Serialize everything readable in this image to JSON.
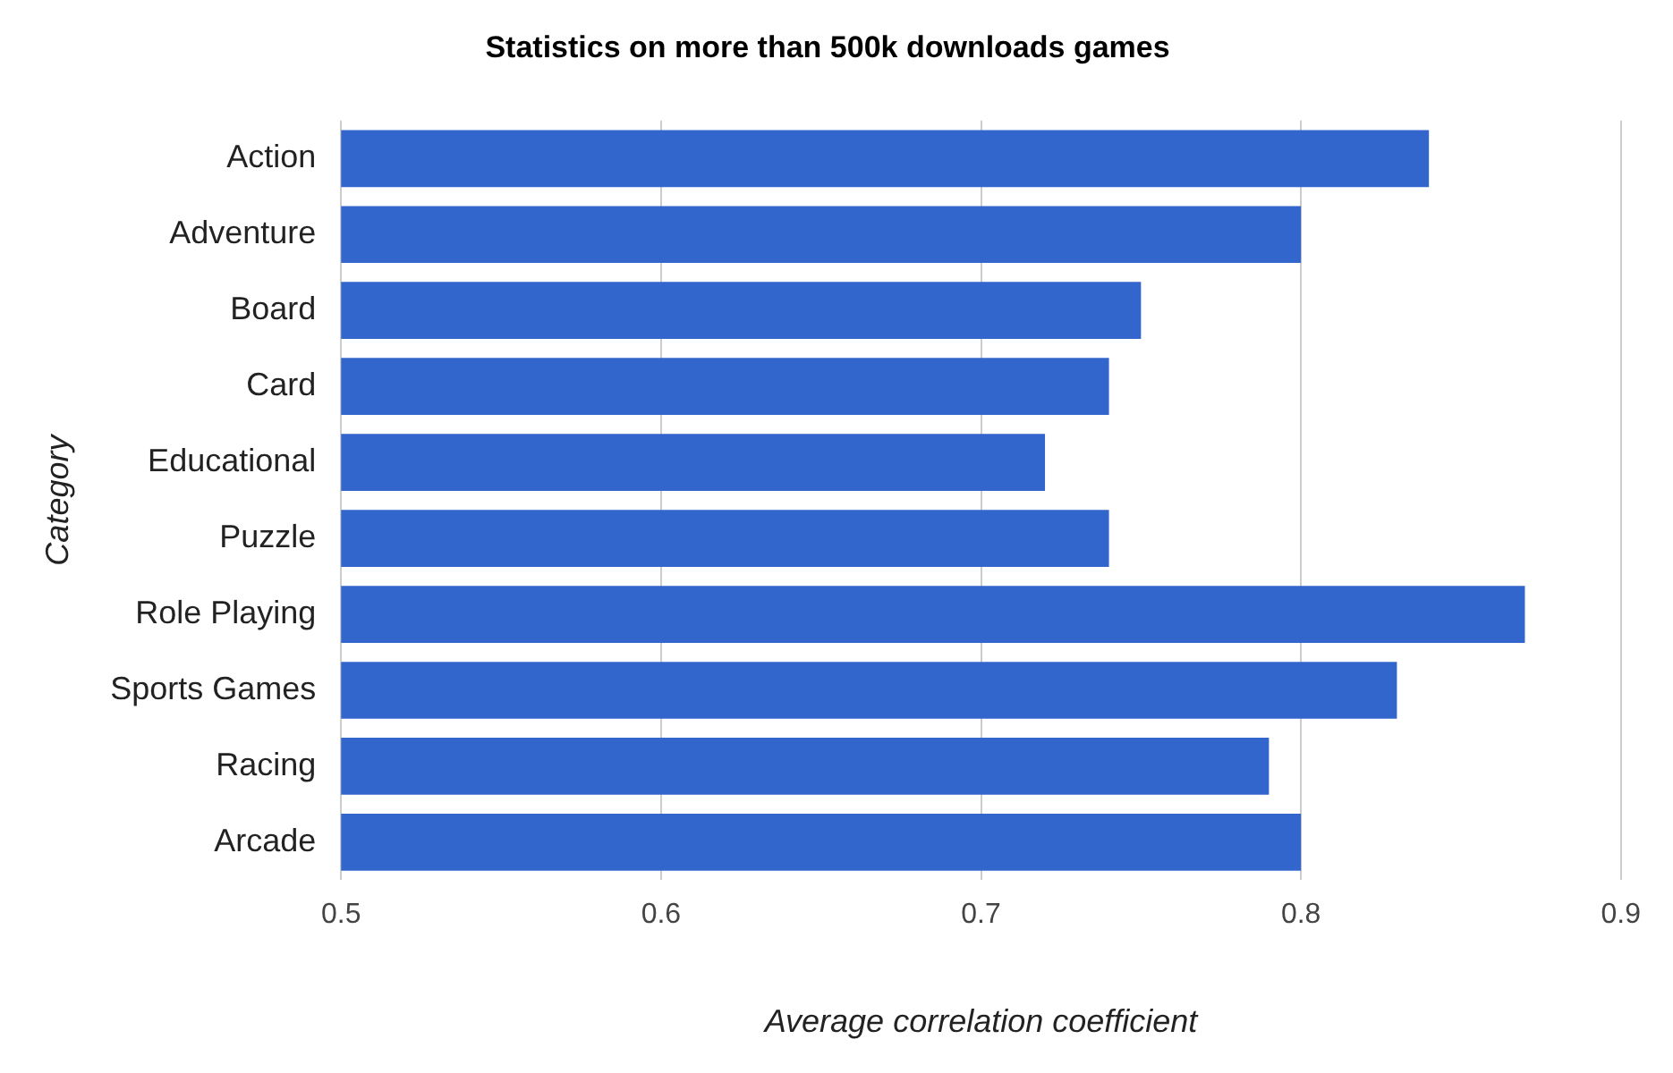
{
  "chart_data": {
    "type": "bar",
    "orientation": "horizontal",
    "title": "Statistics on more than 500k downloads games",
    "xlabel": "Average correlation coefficient",
    "ylabel": "Category",
    "categories": [
      "Action",
      "Adventure",
      "Board",
      "Card",
      "Educational",
      "Puzzle",
      "Role Playing",
      "Sports Games",
      "Racing",
      "Arcade"
    ],
    "values": [
      0.84,
      0.8,
      0.75,
      0.74,
      0.72,
      0.74,
      0.87,
      0.83,
      0.79,
      0.8
    ],
    "color": "#3366cc",
    "xlim": [
      0.5,
      0.9
    ],
    "xticks": [
      0.5,
      0.6,
      0.7,
      0.8,
      0.9
    ],
    "grid": "x"
  }
}
